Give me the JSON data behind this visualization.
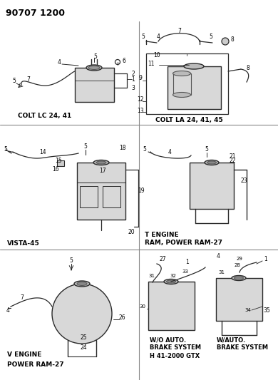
{
  "title": "90707 1200",
  "bg": "#ffffff",
  "lc": "#2a2a2a",
  "tc": "#000000",
  "panel_dividers": {
    "vx": 195,
    "hy1": 175,
    "hy2": 350
  },
  "labels": {
    "colt_lc": "COLT LC 24, 41",
    "colt_la": "COLT LA 24, 41, 45",
    "vista": "VISTA-45",
    "t_engine": "T ENGINE\nRAM, POWER RAM-27",
    "v_engine": "V ENGINE\nPOWER RAM-27",
    "wo_brake": "W/O AUTO.\nBRAKE SYSTEM\nH 41-2000 GTX",
    "w_brake": "W/AUTO.\nBRAKE SYSTEM"
  }
}
